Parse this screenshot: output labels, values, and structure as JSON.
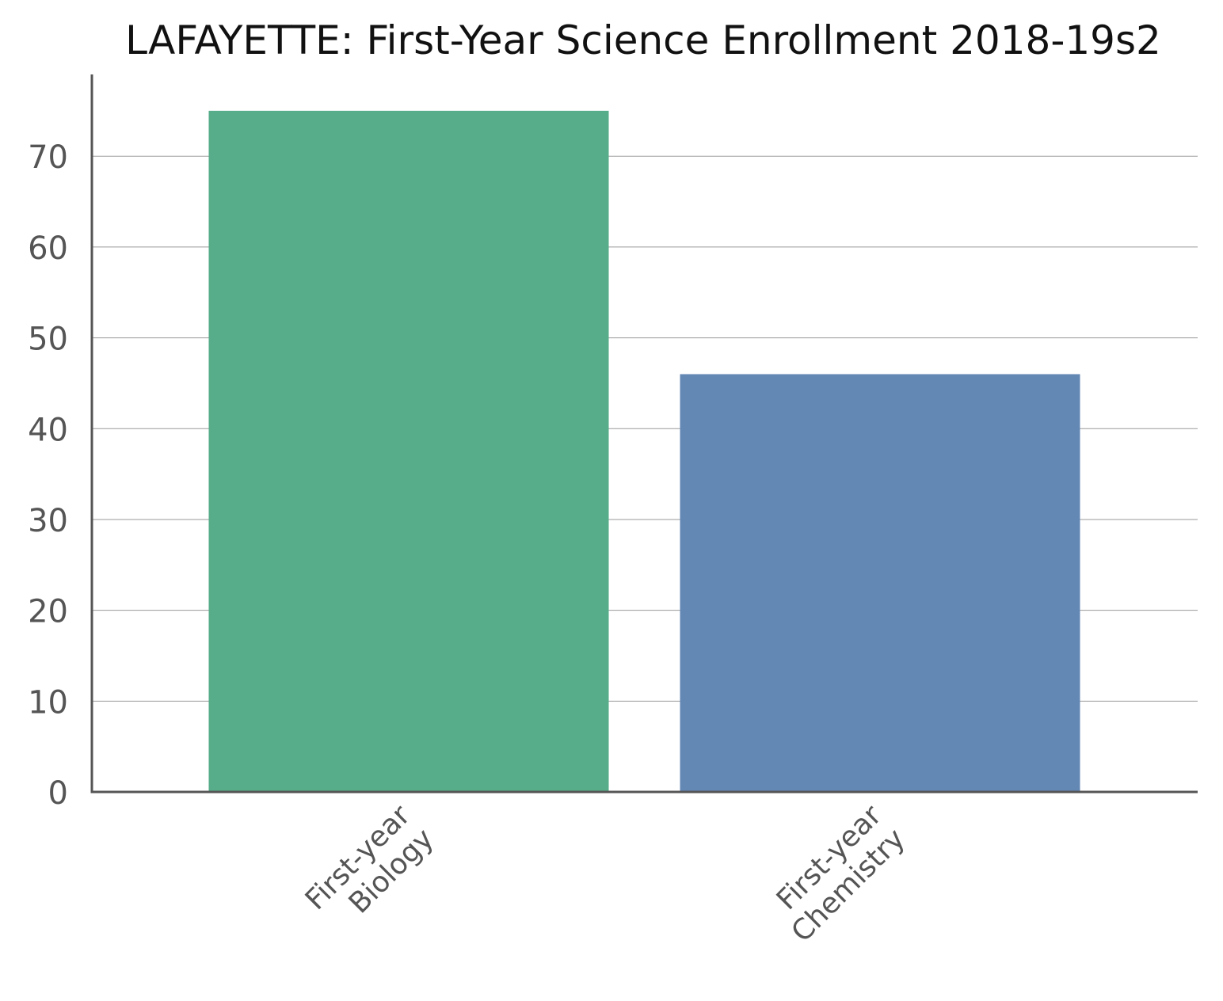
{
  "chart_data": {
    "type": "bar",
    "title": "LAFAYETTE: First-Year Science Enrollment 2018-19s2",
    "xlabel": "",
    "ylabel": "",
    "categories": [
      [
        "First-year",
        "Biology"
      ],
      [
        "First-year",
        "Chemistry"
      ]
    ],
    "values": [
      75,
      46
    ],
    "colors": [
      "#57ad89",
      "#6488b4"
    ],
    "ylim": [
      0,
      79
    ],
    "yticks": [
      0,
      10,
      20,
      30,
      40,
      50,
      60,
      70
    ],
    "grid": true,
    "legend": "none"
  }
}
